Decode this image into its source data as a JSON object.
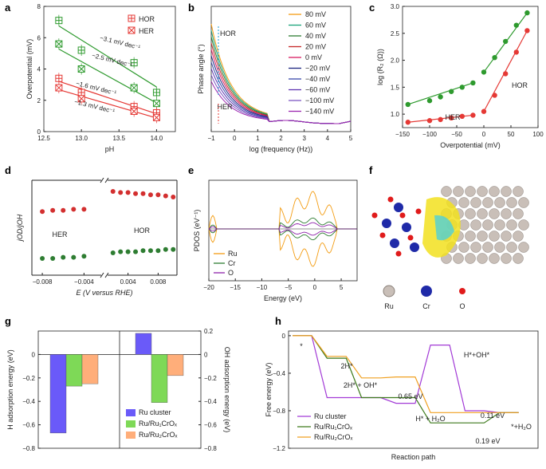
{
  "figure": {
    "panels": [
      "a",
      "b",
      "c",
      "d",
      "e",
      "f",
      "g",
      "h"
    ]
  },
  "chart_data": [
    {
      "id": "a",
      "type": "scatter",
      "xlabel": "pH",
      "ylabel": "Overpotential (mV)",
      "xlim": [
        12.5,
        14.25
      ],
      "ylim": [
        0,
        8
      ],
      "xticks": [
        "12.5",
        "13.0",
        "13.5",
        "14.0"
      ],
      "yticks": [
        "0",
        "2",
        "4",
        "6",
        "8"
      ],
      "legend": [
        "HOR",
        "HER"
      ],
      "series": [
        {
          "name": "HOR",
          "color": "#2e9a2e",
          "marker": "boxplus",
          "x": [
            12.7,
            13.0,
            13.7,
            14.0
          ],
          "y": [
            7.1,
            5.2,
            4.4,
            2.5
          ]
        },
        {
          "name": "HER",
          "color": "#2e9a2e",
          "marker": "boxx",
          "x": [
            12.7,
            13.0,
            13.7,
            14.0
          ],
          "y": [
            5.6,
            4.0,
            2.8,
            1.8
          ]
        },
        {
          "name": "HOR",
          "color": "#e53935",
          "marker": "boxplus",
          "x": [
            12.7,
            13.0,
            13.7,
            14.0
          ],
          "y": [
            3.4,
            2.5,
            1.6,
            1.2
          ]
        },
        {
          "name": "HER",
          "color": "#e53935",
          "marker": "boxx",
          "x": [
            12.7,
            13.0,
            13.7,
            14.0
          ],
          "y": [
            2.8,
            2.1,
            1.3,
            0.9
          ]
        }
      ],
      "annotations": [
        "−3.1 mV dec⁻¹",
        "−2.5 mV dec⁻¹",
        "−1.6 mV dec⁻¹",
        "−1.3 mV dec⁻¹"
      ]
    },
    {
      "id": "b",
      "type": "line",
      "xlabel": "log (frequency (Hz))",
      "ylabel": "Phase angle (°)",
      "xticks": [
        "−1",
        "0",
        "1",
        "2",
        "3",
        "4",
        "5"
      ],
      "xlim": [
        -1,
        5
      ],
      "annotations": [
        "HOR",
        "HER"
      ],
      "legend": [
        "80 mV",
        "60 mV",
        "40 mV",
        "20 mV",
        "0 mV",
        "−20 mV",
        "−40 mV",
        "−60 mV",
        "−100 mV",
        "−140 mV"
      ],
      "colors": [
        "#f39c12",
        "#1aa37a",
        "#2e7d32",
        "#c62828",
        "#d81b60",
        "#1a237e",
        "#3949ab",
        "#5e35b1",
        "#7e57c2",
        "#9c27b0"
      ]
    },
    {
      "id": "c",
      "type": "line",
      "xlabel": "Overpotential (mV)",
      "ylabel": "log (R₂ (Ω))",
      "xlim": [
        -150,
        100
      ],
      "ylim": [
        0.75,
        3.0
      ],
      "xticks": [
        "−150",
        "−100",
        "−50",
        "0",
        "50",
        "100"
      ],
      "yticks": [
        "1.0",
        "1.5",
        "2.0",
        "2.5",
        "3.0"
      ],
      "annotations": [
        "HER",
        "HOR"
      ],
      "series": [
        {
          "name": "green",
          "color": "#2e9a2e",
          "x": [
            -140,
            -100,
            -80,
            -60,
            -40,
            -20,
            0,
            20,
            40,
            60,
            80
          ],
          "y": [
            1.18,
            1.25,
            1.32,
            1.42,
            1.5,
            1.58,
            1.78,
            2.05,
            2.35,
            2.65,
            2.88
          ]
        },
        {
          "name": "red",
          "color": "#e53935",
          "x": [
            -140,
            -100,
            -80,
            -60,
            -40,
            -20,
            0,
            20,
            40,
            60,
            80
          ],
          "y": [
            0.85,
            0.88,
            0.9,
            0.93,
            0.96,
            0.98,
            1.05,
            1.35,
            1.75,
            2.15,
            2.55
          ]
        }
      ]
    },
    {
      "id": "d",
      "type": "scatter",
      "xlabel": "E (V versus RHE)",
      "ylabel": "jOD/jOH",
      "xticks": [
        "−0.008",
        "−0.004",
        "0.004",
        "0.008"
      ],
      "annotations": [
        "HER",
        "HOR"
      ],
      "series": [
        {
          "name": "red",
          "color": "#d32f2f",
          "x": [
            -0.008,
            -0.007,
            -0.006,
            -0.005,
            -0.004,
            0.002,
            0.003,
            0.004,
            0.005,
            0.006,
            0.007,
            0.008,
            0.009,
            0.01
          ],
          "y": [
            0.67,
            0.68,
            0.68,
            0.69,
            0.69,
            0.85,
            0.84,
            0.84,
            0.83,
            0.83,
            0.82,
            0.82,
            0.81,
            0.8
          ]
        },
        {
          "name": "green",
          "color": "#2e7d32",
          "x": [
            -0.008,
            -0.007,
            -0.006,
            -0.005,
            -0.004,
            0.002,
            0.003,
            0.004,
            0.005,
            0.006,
            0.007,
            0.008,
            0.009,
            0.01
          ],
          "y": [
            0.25,
            0.25,
            0.26,
            0.26,
            0.27,
            0.3,
            0.31,
            0.31,
            0.31,
            0.32,
            0.32,
            0.32,
            0.33,
            0.33
          ]
        }
      ]
    },
    {
      "id": "e",
      "type": "line",
      "xlabel": "Energy (eV)",
      "ylabel": "PDOS (eV⁻¹)",
      "xlim": [
        -20,
        8
      ],
      "xticks": [
        "−20",
        "−15",
        "−10",
        "−5",
        "0",
        "5"
      ],
      "legend": [
        "Ru",
        "Cr",
        "O"
      ],
      "colors": [
        "#f39c12",
        "#2e7d32",
        "#8e24aa"
      ]
    },
    {
      "id": "g",
      "type": "bar",
      "ylabel": "H adsorption energy (eV)",
      "y2label": "OH adsorption energy (eV)",
      "ylim": [
        -0.8,
        0.2
      ],
      "yticks": [
        "0",
        "−0.2",
        "−0.4",
        "−0.6",
        "−0.8"
      ],
      "y2ticks": [
        "0.2",
        "0",
        "−0.2",
        "−0.4",
        "−0.6",
        "−0.8"
      ],
      "legend": [
        "Ru cluster",
        "Ru/Ru₁CrOₓ",
        "Ru/Ru₂CrOₓ"
      ],
      "colors": [
        "#6a5af9",
        "#7ed957",
        "#ffae7a"
      ],
      "series": [
        {
          "name": "H adsorption",
          "values": [
            -0.67,
            -0.27,
            -0.25
          ]
        },
        {
          "name": "OH adsorption",
          "values": [
            0.18,
            -0.41,
            -0.18
          ]
        }
      ]
    },
    {
      "id": "h",
      "type": "line",
      "xlabel": "Reaction path",
      "ylabel": "Free energy (eV)",
      "ylim": [
        -1.2,
        0.05
      ],
      "yticks": [
        "0",
        "−0.4",
        "−0.8",
        "−1.2"
      ],
      "legend": [
        "Ru cluster",
        "Ru/Ru₁CrOₓ",
        "Ru/Ru₂CrOₓ"
      ],
      "colors": [
        "#a23ad6",
        "#3d7a1c",
        "#f0a020"
      ],
      "annotations": [
        "*",
        "2H*",
        "2H* + OH*",
        "0.65 eV",
        "H*+OH*",
        "H* + H₂O",
        "0.11 eV",
        "0.19 eV",
        "*+H₂O"
      ],
      "series": [
        {
          "name": "Ru cluster",
          "values": [
            0,
            -0.66,
            -0.66,
            -0.72,
            -0.1,
            -0.8,
            -0.82
          ]
        },
        {
          "name": "Ru/Ru₁CrOₓ",
          "values": [
            0,
            -0.24,
            -0.66,
            -0.66,
            -0.93,
            -0.93,
            -0.82
          ]
        },
        {
          "name": "Ru/Ru₂CrOₓ",
          "values": [
            0,
            -0.22,
            -0.45,
            -0.44,
            -0.82,
            -0.82,
            -0.82
          ]
        }
      ]
    }
  ],
  "panel_f": {
    "legend": [
      "Ru",
      "Cr",
      "O"
    ],
    "colors": {
      "Ru": "#c9bfb8",
      "Cr": "#1f2aa8",
      "O": "#e01b1b"
    }
  }
}
